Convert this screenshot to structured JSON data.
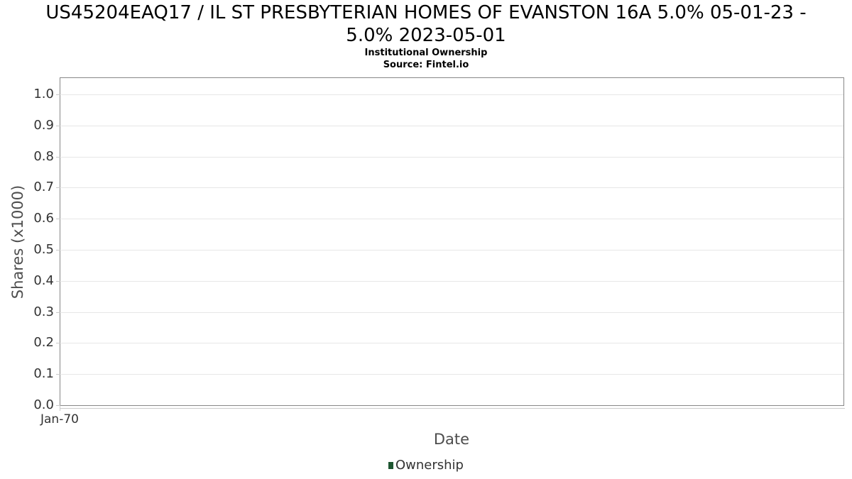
{
  "header": {
    "title_lines": [
      "US45204EAQ17 / IL ST PRESBYTERIAN HOMES OF EVANSTON 16A 5.0% 05-01-23 -",
      "5.0% 2023-05-01"
    ],
    "subtitle": "Institutional Ownership",
    "source": "Source: Fintel.io"
  },
  "axes": {
    "y_title": "Shares (x1000)",
    "x_title": "Date"
  },
  "legend": {
    "items": [
      {
        "label": "Ownership",
        "color": "#1e5631",
        "marker": "square"
      }
    ]
  },
  "colors": {
    "title": "#000000",
    "tick_label": "#333333",
    "axis_title": "#4d4d4d",
    "gridline": "#e7e7e7",
    "plot_border": "#878787",
    "tick_mark": "#c9c9c9",
    "axis_line": "#cccccc",
    "ownership_green": "#1e5631"
  },
  "chart_data": {
    "type": "bar",
    "title": "US45204EAQ17 / IL ST PRESBYTERIAN HOMES OF EVANSTON 16A 5.0% 05-01-23 - 5.0% 2023-05-01",
    "subtitle": "Institutional Ownership",
    "source": "Source: Fintel.io",
    "xlabel": "Date",
    "ylabel": "Shares (x1000)",
    "x_ticks": [
      {
        "label": "Jan-70",
        "pos": 0
      }
    ],
    "y_ticks": [
      "0.0",
      "0.1",
      "0.2",
      "0.3",
      "0.4",
      "0.5",
      "0.6",
      "0.7",
      "0.8",
      "0.9",
      "1.0"
    ],
    "ylim": [
      0,
      1.05
    ],
    "grid": true,
    "legend_position": "bottom",
    "series": [
      {
        "name": "Ownership",
        "color": "#1e5631",
        "x": [],
        "values": []
      }
    ]
  }
}
